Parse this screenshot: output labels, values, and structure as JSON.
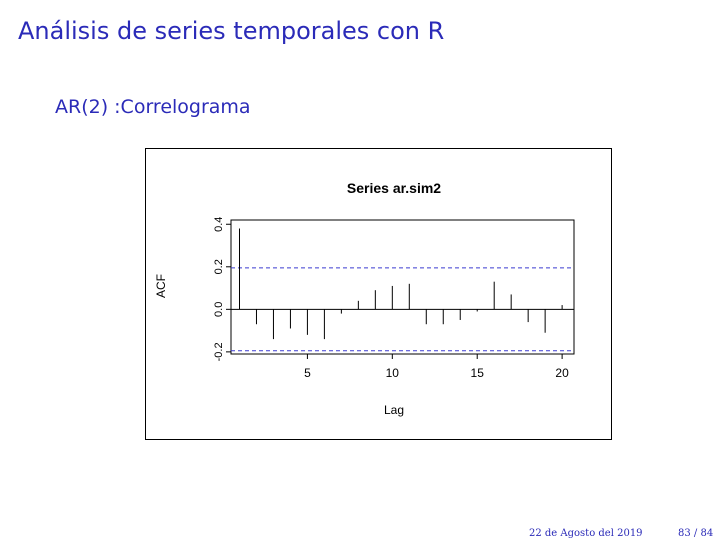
{
  "slide": {
    "title": "Análisis de series temporales con R",
    "subtitle": "AR(2) :Correlograma",
    "footer_date": "22 de Agosto del 2019",
    "footer_page": "83 / 84",
    "accent_color": "#2b2bb8"
  },
  "chart_data": {
    "type": "bar",
    "title": "Series ar.sim2",
    "xlabel": "Lag",
    "ylabel": "ACF",
    "x_ticks": [
      5,
      10,
      15,
      20
    ],
    "y_ticks": [
      "-0.2",
      "0.0",
      "0.2",
      "0.4"
    ],
    "xlim": [
      0.5,
      20.7
    ],
    "ylim": [
      -0.21,
      0.42
    ],
    "lags": [
      1,
      2,
      3,
      4,
      5,
      6,
      7,
      8,
      9,
      10,
      11,
      12,
      13,
      14,
      15,
      16,
      17,
      18,
      19,
      20
    ],
    "values": [
      0.38,
      -0.07,
      -0.14,
      -0.09,
      -0.12,
      -0.14,
      -0.02,
      0.04,
      0.09,
      0.11,
      0.12,
      -0.07,
      -0.07,
      -0.05,
      -0.01,
      0.13,
      0.07,
      -0.06,
      -0.11,
      0.02
    ],
    "confidence_band": [
      -0.195,
      0.195
    ],
    "band_color": "#3b3bd0"
  }
}
